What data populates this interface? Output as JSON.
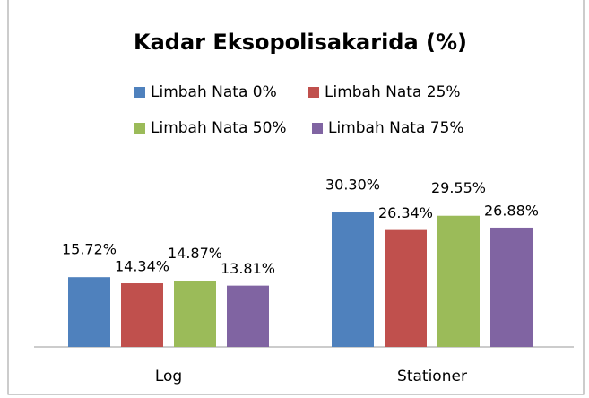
{
  "chart_data": {
    "type": "bar",
    "title": "Kadar Eksopolisakarida (%)",
    "categories": [
      "Log",
      "Stationer"
    ],
    "series": [
      {
        "name": "Limbah Nata 0%",
        "color": "#4f81bd",
        "values": [
          15.72,
          30.3
        ],
        "value_labels": [
          "15.72%",
          "30.30%"
        ]
      },
      {
        "name": "Limbah Nata 25%",
        "color": "#c0504d",
        "values": [
          14.34,
          26.34
        ],
        "value_labels": [
          "14.34%",
          "26.34%"
        ]
      },
      {
        "name": "Limbah Nata 50%",
        "color": "#9bbb59",
        "values": [
          14.87,
          29.55
        ],
        "value_labels": [
          "14.87%",
          "29.55%"
        ]
      },
      {
        "name": "Limbah Nata 75%",
        "color": "#8064a2",
        "values": [
          13.81,
          26.88
        ],
        "value_labels": [
          "13.81%",
          "26.88%"
        ]
      }
    ]
  }
}
